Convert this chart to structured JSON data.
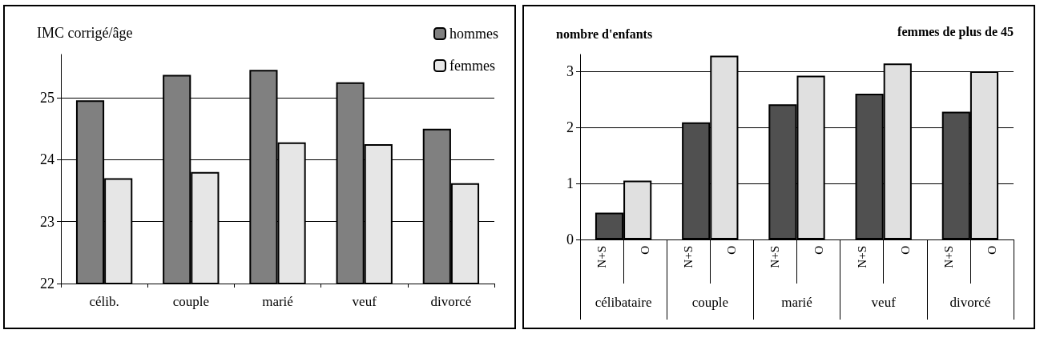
{
  "chart_data": [
    {
      "type": "bar",
      "ylabel": "IMC corrigé/âge",
      "categories": [
        "célib.",
        "couple",
        "marié",
        "veuf",
        "divorcé"
      ],
      "series": [
        {
          "name": "hommes",
          "color": "#808080",
          "values": [
            24.96,
            25.37,
            25.45,
            25.25,
            24.5
          ]
        },
        {
          "name": "femmes",
          "color": "#e6e6e6",
          "values": [
            23.7,
            23.8,
            24.28,
            24.25,
            23.62
          ]
        }
      ],
      "ylim": [
        22,
        25.7
      ],
      "yticks": [
        22,
        23,
        24,
        25
      ],
      "grid": "y",
      "legend": "top right"
    },
    {
      "type": "bar",
      "title": "femmes de plus de 45",
      "ylabel": "nombre d'enfants",
      "categories": [
        "célibataire",
        "couple",
        "marié",
        "veuf",
        "divorcé"
      ],
      "series": [
        {
          "name": "N+S",
          "color": "#505050",
          "values": [
            0.48,
            2.09,
            2.41,
            2.6,
            2.28
          ]
        },
        {
          "name": "O",
          "color": "#e0e0e0",
          "values": [
            1.05,
            3.28,
            2.92,
            3.14,
            3.0
          ]
        }
      ],
      "ylim": [
        0,
        3.3
      ],
      "yticks": [
        0,
        1,
        2,
        3
      ],
      "grid": "y",
      "legend": false
    }
  ]
}
